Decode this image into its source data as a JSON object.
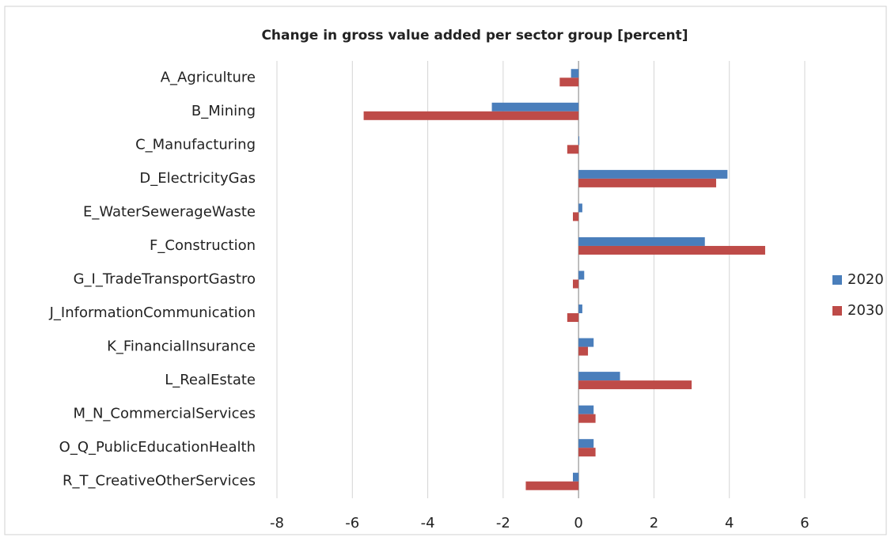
{
  "chart_data": {
    "type": "bar",
    "orientation": "horizontal",
    "title": "Change in gross value added per sector group [percent]",
    "categories": [
      "A_Agriculture",
      "B_Mining",
      "C_Manufacturing",
      "D_ElectricityGas",
      "E_WaterSewerageWaste",
      "F_Construction",
      "G_I_TradeTransportGastro",
      "J_InformationCommunication",
      "K_FinancialInsurance",
      "L_RealEstate",
      "M_N_CommercialServices",
      "O_Q_PublicEducationHealth",
      "R_T_CreativeOtherServices"
    ],
    "series": [
      {
        "name": "2020",
        "color": "#4a7ebb",
        "values": [
          -0.2,
          -2.3,
          0.02,
          3.95,
          0.1,
          3.35,
          0.15,
          0.1,
          0.4,
          1.1,
          0.4,
          0.4,
          -0.15
        ]
      },
      {
        "name": "2030",
        "color": "#be4b48",
        "values": [
          -0.5,
          -5.7,
          -0.3,
          3.65,
          -0.15,
          4.95,
          -0.15,
          -0.3,
          0.25,
          3.0,
          0.45,
          0.45,
          -1.4
        ]
      }
    ],
    "xlim": [
      -8,
      6
    ],
    "xticks": [
      -8,
      -6,
      -4,
      -2,
      0,
      2,
      4,
      6
    ],
    "grid": true,
    "legend": "right"
  }
}
